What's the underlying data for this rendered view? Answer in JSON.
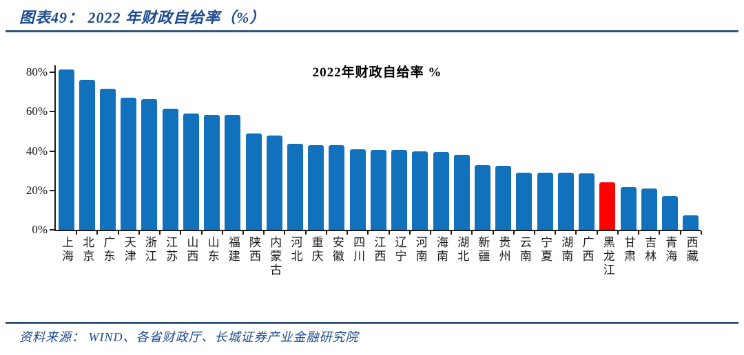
{
  "figure": {
    "header": "图表49： 2022 年财政自给率（%）",
    "source": "资料来源： WIND、各省财政厅、长城证券产业金融研究院"
  },
  "chart_data": {
    "type": "bar",
    "title": "2022年财政自给率 %",
    "categories": [
      "上海",
      "北京",
      "广东",
      "天津",
      "浙江",
      "江苏",
      "山西",
      "山东",
      "福建",
      "陕西",
      "内蒙古",
      "河北",
      "重庆",
      "安徽",
      "四川",
      "江西",
      "辽宁",
      "河南",
      "海南",
      "湖北",
      "新疆",
      "贵州",
      "云南",
      "宁夏",
      "湖南",
      "广西",
      "黑龙江",
      "甘肃",
      "吉林",
      "青海",
      "西藏"
    ],
    "values": [
      81.5,
      76,
      71.5,
      67,
      66.5,
      61.5,
      59,
      58.5,
      58.5,
      49,
      48,
      43.5,
      43,
      43,
      41,
      40.5,
      40.5,
      40,
      39.5,
      38,
      33,
      32.5,
      29,
      29,
      29,
      28.5,
      24,
      21.5,
      21,
      17,
      7.5
    ],
    "unit": "%",
    "ylim": [
      0,
      80
    ],
    "yticks": [
      {
        "value": 0,
        "label": "0%"
      },
      {
        "value": 20,
        "label": "20%"
      },
      {
        "value": 40,
        "label": "40%"
      },
      {
        "value": 60,
        "label": "60%"
      },
      {
        "value": 80,
        "label": "80%"
      }
    ],
    "bar_color": "#1271BD",
    "highlight": {
      "category": "黑龙江",
      "index": 26,
      "color": "#FF0000"
    },
    "grid": false,
    "legend_position": "none",
    "xlabel": "",
    "ylabel": ""
  },
  "colors": {
    "caption_blue": "#1C4B8F",
    "divider_blue": "#24466e",
    "axis_black": "#1a1a1a",
    "bar_blue": "#1271BD",
    "bar_red": "#FF0000"
  }
}
